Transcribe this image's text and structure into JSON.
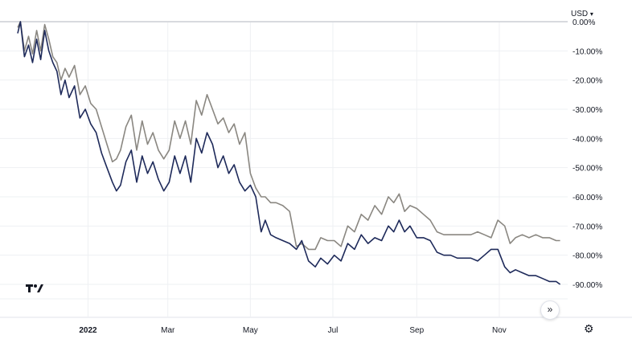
{
  "currency": {
    "label": "USD",
    "icon": "chevron-down-icon"
  },
  "controls": {
    "scroll_icon": "double-chevron-right-icon",
    "settings_icon": "gear-icon",
    "logo": "tradingview-logo"
  },
  "colors": {
    "series_1": "#1e2a5a",
    "series_2": "#8a8781",
    "grid": "#eef0f3",
    "zero_line": "#b2b5be"
  },
  "chart_data": {
    "type": "line",
    "title": "",
    "xlabel": "",
    "ylabel": "",
    "y_unit": "%",
    "ylim": [
      -93,
      0
    ],
    "y_ticks": [
      "0.00%",
      "-10.00%",
      "-20.00%",
      "-30.00%",
      "-40.00%",
      "-50.00%",
      "-60.00%",
      "-70.00%",
      "-80.00%",
      "-90.00%"
    ],
    "y_tick_values": [
      0,
      -10,
      -20,
      -30,
      -40,
      -50,
      -60,
      -70,
      -80,
      -90
    ],
    "x_range": [
      "2021-11-10",
      "2022-12-18"
    ],
    "x_ticks": [
      {
        "label": "2022",
        "date": "2022-01-01",
        "bold": true
      },
      {
        "label": "Mar",
        "date": "2022-03-01",
        "bold": false
      },
      {
        "label": "May",
        "date": "2022-05-01",
        "bold": false
      },
      {
        "label": "Jul",
        "date": "2022-07-01",
        "bold": false
      },
      {
        "label": "Sep",
        "date": "2022-09-01",
        "bold": false
      },
      {
        "label": "Nov",
        "date": "2022-11-01",
        "bold": false
      }
    ],
    "grid": true,
    "series": [
      {
        "x": [
          "2021-11-10",
          "2021-11-12",
          "2021-11-15",
          "2021-11-18",
          "2021-11-21",
          "2021-11-24",
          "2021-11-27",
          "2021-11-30",
          "2021-12-03",
          "2021-12-06",
          "2021-12-09",
          "2021-12-12",
          "2021-12-15",
          "2021-12-18",
          "2021-12-22",
          "2021-12-26",
          "2021-12-30",
          "2022-01-03",
          "2022-01-07",
          "2022-01-11",
          "2022-01-15",
          "2022-01-19",
          "2022-01-22",
          "2022-01-25",
          "2022-01-29",
          "2022-02-02",
          "2022-02-06",
          "2022-02-10",
          "2022-02-14",
          "2022-02-18",
          "2022-02-22",
          "2022-02-26",
          "2022-03-02",
          "2022-03-06",
          "2022-03-10",
          "2022-03-14",
          "2022-03-18",
          "2022-03-22",
          "2022-03-26",
          "2022-03-30",
          "2022-04-03",
          "2022-04-07",
          "2022-04-11",
          "2022-04-15",
          "2022-04-19",
          "2022-04-23",
          "2022-04-27",
          "2022-05-01",
          "2022-05-05",
          "2022-05-09",
          "2022-05-12",
          "2022-05-16",
          "2022-05-20",
          "2022-05-25",
          "2022-05-30",
          "2022-06-04",
          "2022-06-08",
          "2022-06-13",
          "2022-06-18",
          "2022-06-22",
          "2022-06-27",
          "2022-07-02",
          "2022-07-07",
          "2022-07-12",
          "2022-07-17",
          "2022-07-22",
          "2022-07-27",
          "2022-08-01",
          "2022-08-06",
          "2022-08-11",
          "2022-08-15",
          "2022-08-19",
          "2022-08-23",
          "2022-08-27",
          "2022-09-01",
          "2022-09-06",
          "2022-09-11",
          "2022-09-16",
          "2022-09-21",
          "2022-09-26",
          "2022-10-01",
          "2022-10-06",
          "2022-10-11",
          "2022-10-16",
          "2022-10-21",
          "2022-10-26",
          "2022-10-31",
          "2022-11-05",
          "2022-11-09",
          "2022-11-13",
          "2022-11-18",
          "2022-11-23",
          "2022-11-28",
          "2022-12-03",
          "2022-12-08",
          "2022-12-13",
          "2022-12-16"
        ],
        "values": [
          -4,
          0,
          -12,
          -8,
          -14,
          -6,
          -13,
          -3,
          -10,
          -14,
          -17,
          -25,
          -20,
          -26,
          -22,
          -33,
          -30,
          -35,
          -38,
          -45,
          -50,
          -55,
          -58,
          -56,
          -48,
          -44,
          -55,
          -46,
          -52,
          -48,
          -54,
          -58,
          -55,
          -46,
          -52,
          -46,
          -55,
          -40,
          -45,
          -38,
          -42,
          -50,
          -46,
          -52,
          -49,
          -55,
          -58,
          -56,
          -60,
          -72,
          -68,
          -73,
          -74,
          -75,
          -76,
          -78,
          -75,
          -82,
          -84,
          -81,
          -83,
          -80,
          -82,
          -76,
          -78,
          -73,
          -76,
          -74,
          -75,
          -70,
          -72,
          -68,
          -72,
          -70,
          -74,
          -74,
          -75,
          -79,
          -80,
          -80,
          -81,
          -81,
          -81,
          -82,
          -80,
          -78,
          -78,
          -84,
          -86,
          -85,
          -86,
          -87,
          -87,
          -88,
          -89,
          -89,
          -90
        ]
      },
      {
        "x": [
          "2021-11-10",
          "2021-11-12",
          "2021-11-15",
          "2021-11-18",
          "2021-11-21",
          "2021-11-24",
          "2021-11-27",
          "2021-11-30",
          "2021-12-03",
          "2021-12-06",
          "2021-12-09",
          "2021-12-12",
          "2021-12-15",
          "2021-12-18",
          "2021-12-22",
          "2021-12-26",
          "2021-12-30",
          "2022-01-03",
          "2022-01-07",
          "2022-01-11",
          "2022-01-15",
          "2022-01-19",
          "2022-01-22",
          "2022-01-25",
          "2022-01-29",
          "2022-02-02",
          "2022-02-06",
          "2022-02-10",
          "2022-02-14",
          "2022-02-18",
          "2022-02-22",
          "2022-02-26",
          "2022-03-02",
          "2022-03-06",
          "2022-03-10",
          "2022-03-14",
          "2022-03-18",
          "2022-03-22",
          "2022-03-26",
          "2022-03-30",
          "2022-04-03",
          "2022-04-07",
          "2022-04-11",
          "2022-04-15",
          "2022-04-19",
          "2022-04-23",
          "2022-04-27",
          "2022-05-01",
          "2022-05-05",
          "2022-05-09",
          "2022-05-12",
          "2022-05-16",
          "2022-05-20",
          "2022-05-25",
          "2022-05-30",
          "2022-06-04",
          "2022-06-08",
          "2022-06-13",
          "2022-06-18",
          "2022-06-22",
          "2022-06-27",
          "2022-07-02",
          "2022-07-07",
          "2022-07-12",
          "2022-07-17",
          "2022-07-22",
          "2022-07-27",
          "2022-08-01",
          "2022-08-06",
          "2022-08-11",
          "2022-08-15",
          "2022-08-19",
          "2022-08-23",
          "2022-08-27",
          "2022-09-01",
          "2022-09-06",
          "2022-09-11",
          "2022-09-16",
          "2022-09-21",
          "2022-09-26",
          "2022-10-01",
          "2022-10-06",
          "2022-10-11",
          "2022-10-16",
          "2022-10-21",
          "2022-10-26",
          "2022-10-31",
          "2022-11-05",
          "2022-11-09",
          "2022-11-13",
          "2022-11-18",
          "2022-11-23",
          "2022-11-28",
          "2022-12-03",
          "2022-12-08",
          "2022-12-13",
          "2022-12-16"
        ],
        "values": [
          -2,
          0,
          -10,
          -5,
          -11,
          -3,
          -10,
          -1,
          -6,
          -12,
          -14,
          -20,
          -16,
          -19,
          -15,
          -25,
          -22,
          -28,
          -30,
          -36,
          -42,
          -48,
          -47,
          -44,
          -36,
          -32,
          -44,
          -34,
          -42,
          -38,
          -44,
          -47,
          -44,
          -34,
          -40,
          -34,
          -42,
          -27,
          -32,
          -25,
          -30,
          -35,
          -33,
          -38,
          -35,
          -42,
          -38,
          -52,
          -57,
          -60,
          -60,
          -62,
          -62,
          -63,
          -65,
          -77,
          -76,
          -78,
          -78,
          -74,
          -75,
          -75,
          -77,
          -70,
          -72,
          -66,
          -68,
          -63,
          -66,
          -60,
          -62,
          -59,
          -65,
          -63,
          -64,
          -66,
          -68,
          -72,
          -73,
          -73,
          -73,
          -73,
          -73,
          -72,
          -73,
          -74,
          -68,
          -70,
          -76,
          -74,
          -73,
          -74,
          -73,
          -74,
          -74,
          -75,
          -75
        ]
      }
    ]
  }
}
